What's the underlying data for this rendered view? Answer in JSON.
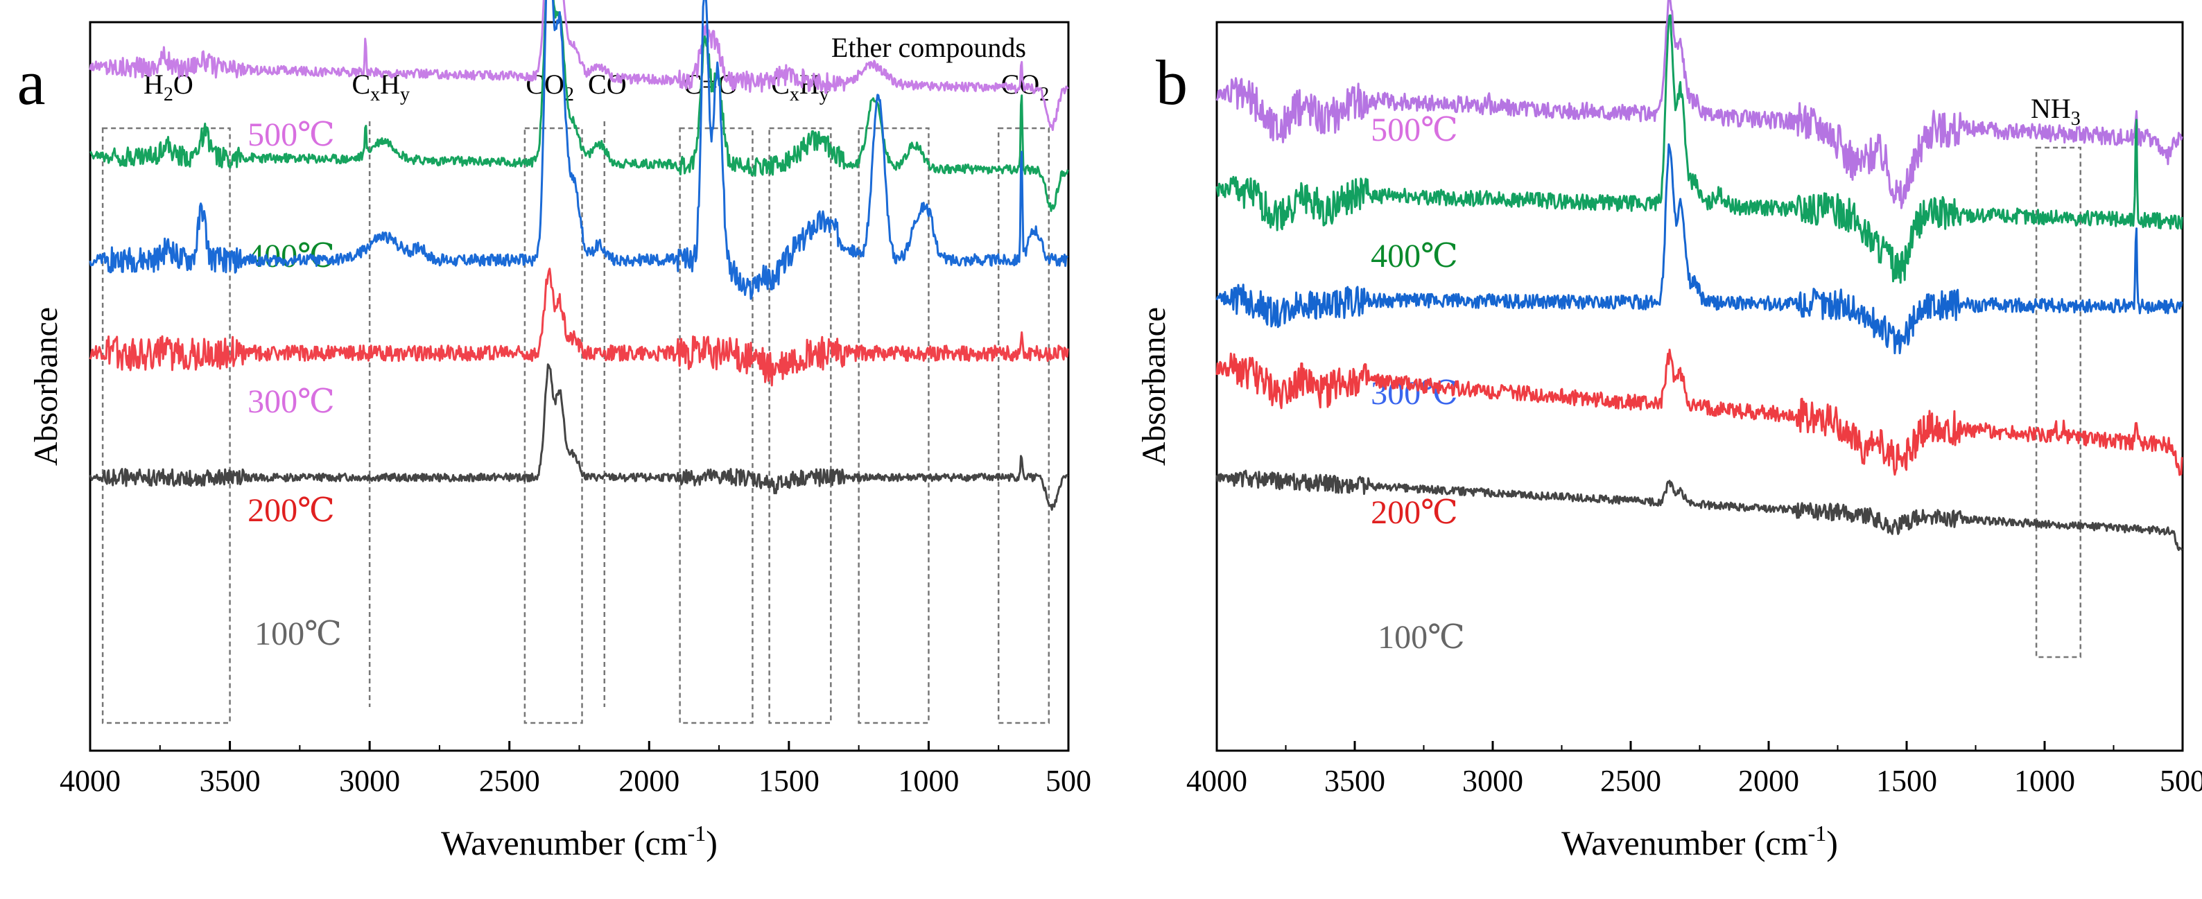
{
  "chart_data": [
    {
      "panel_label": "a",
      "type": "line",
      "xlabel": "Wavenumber (cm",
      "xlabel_sup": "-1",
      "xlabel_tail": ")",
      "ylabel": "Absorbance",
      "xlim": [
        4000,
        500
      ],
      "x_reversed": true,
      "xticks": [
        4000,
        3500,
        3000,
        2500,
        2000,
        1500,
        1000,
        500
      ],
      "yticks_shown": false,
      "series": [
        {
          "name": "500℃",
          "color": "#c77ee6",
          "baseline": 0.8,
          "tilt": 0.06,
          "noise": 0.012,
          "peaks": [
            [
              3735,
              0.03,
              20
            ],
            [
              3600,
              0.02,
              40
            ],
            [
              3015,
              0.08,
              4
            ],
            [
              2360,
              0.35,
              22
            ],
            [
              2320,
              0.25,
              25
            ],
            [
              2270,
              0.08,
              30
            ],
            [
              2180,
              0.03,
              35
            ],
            [
              1800,
              0.12,
              25
            ],
            [
              1760,
              0.09,
              25
            ],
            [
              1500,
              0.02,
              60
            ],
            [
              1200,
              0.05,
              60
            ],
            [
              668,
              0.08,
              4
            ],
            [
              560,
              -0.1,
              25
            ]
          ]
        },
        {
          "name": "400℃",
          "color": "#16a35e",
          "baseline": 0.58,
          "tilt": 0.04,
          "noise": 0.012,
          "peaks": [
            [
              3730,
              0.03,
              25
            ],
            [
              3590,
              0.06,
              25
            ],
            [
              3015,
              0.08,
              4
            ],
            [
              2950,
              0.05,
              60
            ],
            [
              2360,
              0.5,
              22
            ],
            [
              2320,
              0.35,
              25
            ],
            [
              2270,
              0.1,
              30
            ],
            [
              2180,
              0.05,
              35
            ],
            [
              1800,
              0.32,
              22
            ],
            [
              1755,
              0.22,
              25
            ],
            [
              1400,
              0.07,
              80
            ],
            [
              1195,
              0.18,
              35
            ],
            [
              1050,
              0.06,
              40
            ],
            [
              668,
              0.2,
              4
            ],
            [
              560,
              -0.1,
              25
            ]
          ]
        },
        {
          "name": "300℃",
          "color": "#1a6ad6",
          "baseline": 0.33,
          "tilt": 0.0,
          "noise": 0.015,
          "peaks": [
            [
              3720,
              0.03,
              25
            ],
            [
              3600,
              0.13,
              18
            ],
            [
              2950,
              0.06,
              80
            ],
            [
              2820,
              0.03,
              30
            ],
            [
              2360,
              0.8,
              20
            ],
            [
              2320,
              0.6,
              25
            ],
            [
              2270,
              0.2,
              30
            ],
            [
              2180,
              0.04,
              30
            ],
            [
              1800,
              0.72,
              18
            ],
            [
              1755,
              0.5,
              22
            ],
            [
              1650,
              -0.08,
              50
            ],
            [
              1560,
              -0.05,
              40
            ],
            [
              1380,
              0.1,
              90
            ],
            [
              1180,
              0.42,
              30
            ],
            [
              1040,
              0.1,
              35
            ],
            [
              1000,
              0.1,
              30
            ],
            [
              668,
              0.3,
              4
            ],
            [
              620,
              0.08,
              30
            ]
          ]
        },
        {
          "name": "200℃",
          "color": "#f0414a",
          "baseline": 0.09,
          "tilt": 0.0,
          "noise": 0.02,
          "peaks": [
            [
              2360,
              0.2,
              20
            ],
            [
              2320,
              0.13,
              22
            ],
            [
              2270,
              0.04,
              25
            ],
            [
              1550,
              -0.04,
              80
            ],
            [
              668,
              0.05,
              4
            ]
          ]
        },
        {
          "name": "100℃",
          "color": "#444444",
          "baseline": -0.23,
          "tilt": 0.0,
          "noise": 0.01,
          "peaks": [
            [
              2360,
              0.28,
              20
            ],
            [
              2320,
              0.22,
              22
            ],
            [
              2270,
              0.06,
              25
            ],
            [
              1550,
              -0.02,
              60
            ],
            [
              668,
              0.06,
              4
            ],
            [
              560,
              -0.08,
              25
            ]
          ]
        }
      ],
      "series_labels": [
        {
          "text": "500℃",
          "color": "#d86fe0"
        },
        {
          "text": "400℃",
          "color": "#0a8a2c"
        },
        {
          "text": "300℃",
          "color": "#d86fe0"
        },
        {
          "text": "200℃",
          "color": "#e02020"
        },
        {
          "text": "100℃",
          "color": "#666666"
        }
      ],
      "annotations": [
        {
          "text": "H",
          "sub": "2",
          "tail": "O",
          "box_x": [
            3955,
            3500
          ],
          "label_x": 3720
        },
        {
          "text": "C",
          "sub": "x",
          "tail": "H",
          "sub2": "y",
          "line_x": 3000,
          "label_x": 2960
        },
        {
          "text": "CO",
          "sub": "2",
          "tail": "",
          "box_x": [
            2445,
            2240
          ],
          "label_x": 2355
        },
        {
          "text": "CO",
          "sub": "",
          "tail": "",
          "line_x": 2160,
          "label_x": 2150
        },
        {
          "text": "C=O",
          "sub": "",
          "tail": "",
          "box_x": [
            1890,
            1630
          ],
          "label_x": 1780
        },
        {
          "text": "C",
          "sub": "x",
          "tail": "H",
          "sub2": "y",
          "box_x": [
            1570,
            1350
          ],
          "label_x": 1460
        },
        {
          "text": "Ether compounds",
          "sub": "",
          "tail": "",
          "box_x": [
            1250,
            1000
          ],
          "label_x": 1000
        },
        {
          "text": "CO",
          "sub": "2",
          "tail": "",
          "box_x": [
            750,
            570
          ],
          "label_x": 655
        }
      ]
    },
    {
      "panel_label": "b",
      "type": "line",
      "xlabel": "Wavenumber (cm",
      "xlabel_sup": "-1",
      "xlabel_tail": ")",
      "ylabel": "Absorbance",
      "xlim": [
        4000,
        500
      ],
      "x_reversed": true,
      "xticks": [
        4000,
        3500,
        3000,
        2500,
        2000,
        1500,
        1000,
        500
      ],
      "yticks_shown": false,
      "series": [
        {
          "name": "500℃",
          "color": "#b574e2",
          "baseline": 0.7,
          "tilt": 0.12,
          "noise": 0.022,
          "peaks": [
            [
              3780,
              -0.08,
              70
            ],
            [
              3600,
              -0.05,
              60
            ],
            [
              3015,
              0.04,
              3
            ],
            [
              2360,
              0.3,
              20
            ],
            [
              2320,
              0.18,
              22
            ],
            [
              2270,
              0.04,
              25
            ],
            [
              1680,
              -0.1,
              80
            ],
            [
              1520,
              -0.18,
              60
            ],
            [
              668,
              0.08,
              4
            ],
            [
              560,
              -0.05,
              25
            ]
          ]
        },
        {
          "name": "400℃",
          "color": "#12a060",
          "baseline": 0.47,
          "tilt": 0.08,
          "noise": 0.02,
          "peaks": [
            [
              3780,
              -0.06,
              70
            ],
            [
              3600,
              -0.04,
              60
            ],
            [
              2360,
              0.48,
              18
            ],
            [
              2320,
              0.3,
              22
            ],
            [
              2270,
              0.06,
              25
            ],
            [
              2180,
              0.03,
              30
            ],
            [
              1600,
              -0.08,
              80
            ],
            [
              1520,
              -0.12,
              50
            ],
            [
              668,
              0.26,
              4
            ]
          ]
        },
        {
          "name": "300℃",
          "color": "#1565d0",
          "baseline": 0.22,
          "tilt": 0.02,
          "noise": 0.018,
          "peaks": [
            [
              3780,
              -0.04,
              70
            ],
            [
              3600,
              -0.02,
              60
            ],
            [
              2360,
              0.4,
              18
            ],
            [
              2320,
              0.25,
              22
            ],
            [
              2270,
              0.05,
              25
            ],
            [
              1600,
              -0.05,
              80
            ],
            [
              1520,
              -0.08,
              50
            ],
            [
              668,
              0.22,
              4
            ]
          ]
        },
        {
          "name": "200℃",
          "color": "#ee3c42",
          "baseline": -0.05,
          "tilt": 0.2,
          "noise": 0.02,
          "peaks": [
            [
              3780,
              -0.05,
              60
            ],
            [
              3620,
              -0.04,
              50
            ],
            [
              2360,
              0.12,
              18
            ],
            [
              2320,
              0.08,
              22
            ],
            [
              1650,
              -0.07,
              80
            ],
            [
              1520,
              -0.09,
              60
            ],
            [
              960,
              0.03,
              4
            ],
            [
              930,
              0.03,
              4
            ],
            [
              668,
              0.04,
              4
            ],
            [
              510,
              -0.06,
              15
            ]
          ]
        },
        {
          "name": "100℃",
          "color": "#444444",
          "baseline": -0.3,
          "tilt": 0.14,
          "noise": 0.01,
          "peaks": [
            [
              2360,
              0.05,
              18
            ],
            [
              2320,
              0.03,
              22
            ],
            [
              1550,
              -0.03,
              60
            ],
            [
              510,
              -0.05,
              15
            ]
          ]
        }
      ],
      "series_labels": [
        {
          "text": "500℃",
          "color": "#d86fe0"
        },
        {
          "text": "400℃",
          "color": "#0a8a2c"
        },
        {
          "text": "300℃",
          "color": "#3a66ee"
        },
        {
          "text": "200℃",
          "color": "#e02020"
        },
        {
          "text": "100℃",
          "color": "#666666"
        }
      ],
      "annotations": [
        {
          "text": "NH",
          "sub": "3",
          "tail": "",
          "box_x": [
            1030,
            870
          ],
          "label_x": 960
        }
      ]
    }
  ]
}
